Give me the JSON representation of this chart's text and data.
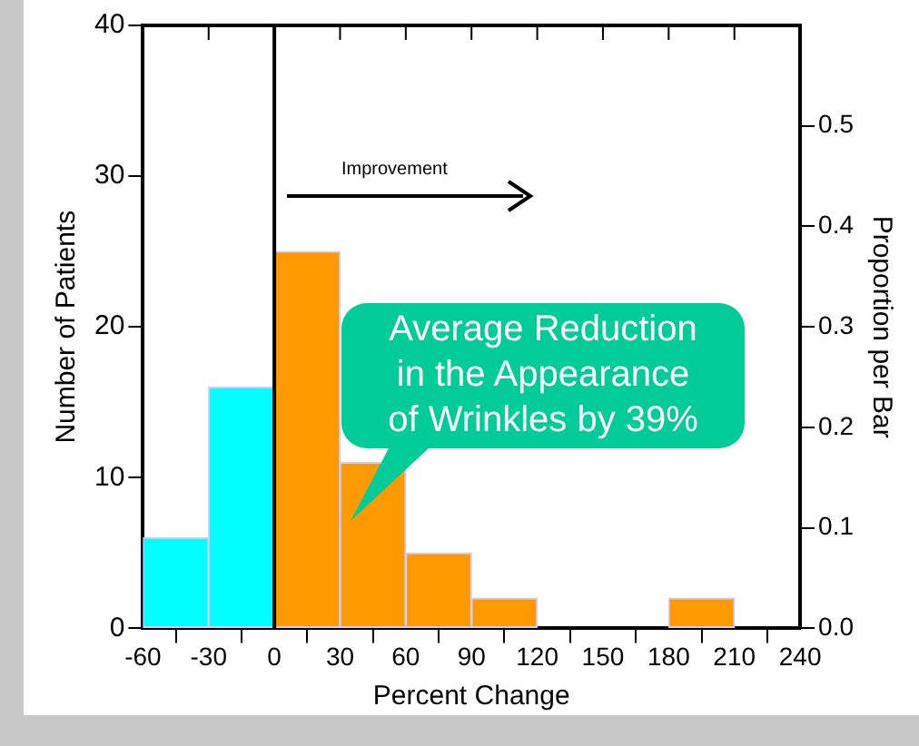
{
  "chart_data": {
    "type": "histogram",
    "xlabel": "Percent Change",
    "ylabel": "Number of Patients",
    "y2label": "Proportion per Bar",
    "bins": [
      -60,
      -30,
      0,
      30,
      60,
      90,
      120,
      150,
      180,
      210,
      240
    ],
    "values": [
      6,
      16,
      25,
      11,
      5,
      2,
      0,
      0,
      2,
      0
    ],
    "colors": [
      "#00ffff",
      "#00ffff",
      "#ff9900",
      "#ff9900",
      "#ff9900",
      "#ff9900",
      "#ff9900",
      "#ff9900",
      "#ff9900",
      "#ff9900"
    ],
    "xlim": [
      -60,
      240
    ],
    "xticks": [
      -60,
      -30,
      0,
      30,
      60,
      90,
      120,
      150,
      180,
      210,
      240
    ],
    "ylim": [
      0,
      40
    ],
    "yticks": [
      0,
      10,
      20,
      30,
      40
    ],
    "y2lim": [
      0,
      0.6
    ],
    "y2ticks": [
      {
        "value": 0,
        "label": "0.0"
      },
      0.1,
      0.2,
      0.3,
      0.4,
      0.5
    ],
    "ref_lines": [
      {
        "axis": "x",
        "value": 0,
        "color": "#000000"
      }
    ],
    "annotations": [
      "Improvement",
      "Average Reduction\nin the Appearance\nof Wrinkles by 39%"
    ],
    "grid": false,
    "legend": false
  }
}
